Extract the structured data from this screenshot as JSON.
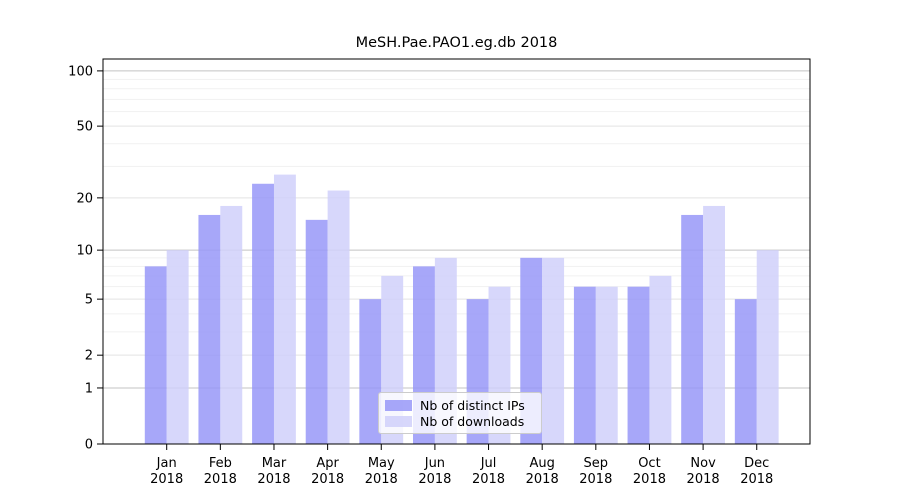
{
  "title": "MeSH.Pae.PAO1.eg.db 2018",
  "colors": {
    "ips_bar": "#9898f8",
    "downloads_bar": "#d0d0fa",
    "bar_opacity": 0.85,
    "grid_major": "#c3c3c3",
    "grid_mid": "#e3e3e3",
    "grid_minor": "#f1f1f1",
    "axis": "#000000",
    "tick_label": "#000000",
    "legend_border": "#cccccc"
  },
  "chart_data": {
    "type": "bar",
    "title": "MeSH.Pae.PAO1.eg.db 2018",
    "categories": [
      "Jan",
      "Feb",
      "Mar",
      "Apr",
      "May",
      "Jun",
      "Jul",
      "Aug",
      "Sep",
      "Oct",
      "Nov",
      "Dec"
    ],
    "year_label": "2018",
    "series": [
      {
        "name": "Nb of distinct IPs",
        "values": [
          8,
          16,
          24,
          15,
          5,
          8,
          5,
          9,
          6,
          6,
          16,
          5
        ]
      },
      {
        "name": "Nb of downloads",
        "values": [
          10,
          18,
          27,
          22,
          7,
          9,
          6,
          9,
          6,
          7,
          18,
          10
        ]
      }
    ],
    "yscale": "log1p",
    "yticks": [
      0,
      1,
      2,
      5,
      10,
      20,
      50,
      100
    ],
    "minor_yticks": [
      3,
      4,
      6,
      7,
      8,
      9,
      30,
      40,
      60,
      70,
      80,
      90
    ],
    "ylim": [
      0,
      116
    ],
    "grid": true,
    "legend_position": "lower center"
  }
}
